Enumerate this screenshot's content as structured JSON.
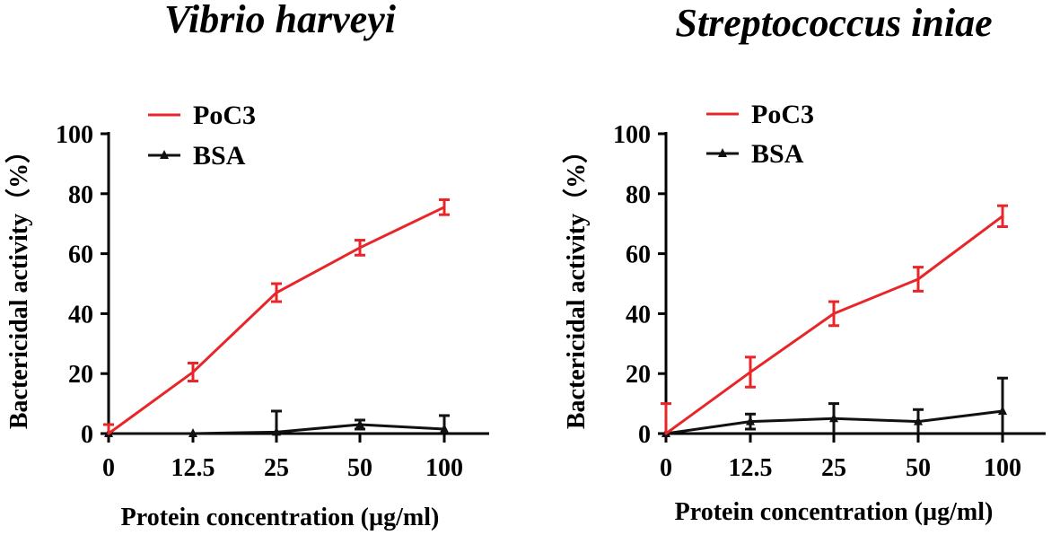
{
  "chart_data": [
    {
      "type": "line",
      "title": "Vibrio  harveyi",
      "xlabel": "Protein concentration (µg/ml)",
      "ylabel": "Bactericidal activity（%）",
      "categories": [
        "0",
        "12.5",
        "25",
        "50",
        "100"
      ],
      "ylim": [
        0,
        100
      ],
      "yticks": [
        "0",
        "20",
        "40",
        "60",
        "80",
        "100"
      ],
      "legend_position": "top-left",
      "series": [
        {
          "name": "PoC3",
          "color": "#e8262a",
          "marker": "none",
          "values": [
            0,
            20.5,
            47,
            62,
            75.5
          ],
          "errors": [
            3,
            3,
            3,
            2.5,
            2.5
          ]
        },
        {
          "name": "BSA",
          "color": "#111111",
          "marker": "triangle",
          "values": [
            0,
            0,
            0.5,
            3,
            1.5
          ],
          "errors": [
            0,
            0,
            7,
            1.5,
            4.5
          ]
        }
      ]
    },
    {
      "type": "line",
      "title": "Streptococcus iniae",
      "xlabel": "Protein concentration (µg/ml)",
      "ylabel": "Bactericidal activity（%）",
      "categories": [
        "0",
        "12.5",
        "25",
        "50",
        "100"
      ],
      "ylim": [
        0,
        100
      ],
      "yticks": [
        "0",
        "20",
        "40",
        "60",
        "80",
        "100"
      ],
      "legend_position": "top-left",
      "series": [
        {
          "name": "PoC3",
          "color": "#e8262a",
          "marker": "none",
          "values": [
            0,
            20.5,
            40,
            51.5,
            72.5
          ],
          "errors": [
            10,
            5,
            4,
            4,
            3.5
          ]
        },
        {
          "name": "BSA",
          "color": "#111111",
          "marker": "triangle",
          "values": [
            0,
            4,
            5,
            4,
            7.5
          ],
          "errors": [
            0,
            2.5,
            5,
            4,
            11
          ]
        }
      ]
    }
  ]
}
